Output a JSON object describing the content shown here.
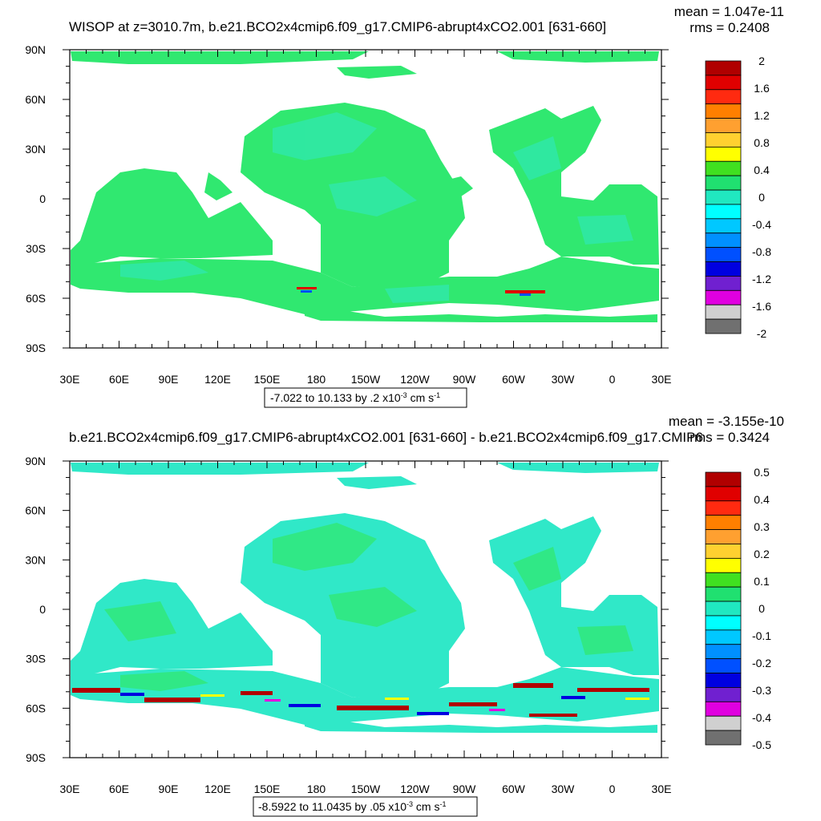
{
  "chart_data": [
    {
      "type": "heatmap",
      "title": "WISOP at z=3010.7m, b.e21.BCO2x4cmip6.f09_g17.CMIP6-abrupt4xCO2.001 [631-660]",
      "stats": {
        "mean": "mean = 1.047e-11",
        "rms": "rms = 0.2408"
      },
      "x_ticks": [
        "30E",
        "60E",
        "90E",
        "120E",
        "150E",
        "180",
        "150W",
        "120W",
        "90W",
        "60W",
        "30W",
        "0",
        "30E"
      ],
      "y_ticks": [
        "90N",
        "60N",
        "30N",
        "0",
        "30S",
        "60S",
        "90S"
      ],
      "xlim": [
        30,
        390
      ],
      "ylim": [
        -90,
        90
      ],
      "colorbar": {
        "levels": [
          "2",
          "1.6",
          "1.2",
          "0.8",
          "0.4",
          "0",
          "-0.4",
          "-0.8",
          "-1.2",
          "-1.6",
          "-2"
        ],
        "colors": [
          "#b00000",
          "#e00000",
          "#ff2a10",
          "#ff7f00",
          "#ffa030",
          "#ffd030",
          "#ffff00",
          "#40e020",
          "#20e070",
          "#20e8c0",
          "#00ffff",
          "#00c8ff",
          "#0090ff",
          "#0050ff",
          "#0000e0",
          "#7020d0",
          "#e000e0",
          "#d0d0d0",
          "#707070"
        ]
      },
      "range_label": {
        "text": "-7.022 to 10.133 by .2 x10",
        "exponent": "-3",
        "unit": " cm s",
        "unit_exponent": "-1"
      }
    },
    {
      "type": "heatmap",
      "title": "b.e21.BCO2x4cmip6.f09_g17.CMIP6-abrupt4xCO2.001 [631-660] - b.e21.BCO2x4cmip6.f09_g17.CMIP6",
      "stats": {
        "mean": "mean = -3.155e-10",
        "rms": "rms = 0.3424"
      },
      "x_ticks": [
        "30E",
        "60E",
        "90E",
        "120E",
        "150E",
        "180",
        "150W",
        "120W",
        "90W",
        "60W",
        "30W",
        "0",
        "30E"
      ],
      "y_ticks": [
        "90N",
        "60N",
        "30N",
        "0",
        "30S",
        "60S",
        "90S"
      ],
      "xlim": [
        30,
        390
      ],
      "ylim": [
        -90,
        90
      ],
      "colorbar": {
        "levels": [
          "0.5",
          "0.4",
          "0.3",
          "0.2",
          "0.1",
          "0",
          "-0.1",
          "-0.2",
          "-0.3",
          "-0.4",
          "-0.5"
        ],
        "colors": [
          "#b00000",
          "#e00000",
          "#ff2a10",
          "#ff7f00",
          "#ffa030",
          "#ffd030",
          "#ffff00",
          "#40e020",
          "#20e070",
          "#20e8c0",
          "#00ffff",
          "#00c8ff",
          "#0090ff",
          "#0050ff",
          "#0000e0",
          "#7020d0",
          "#e000e0",
          "#d0d0d0",
          "#707070"
        ]
      },
      "range_label": {
        "text": "-8.5922 to 11.0435 by .05 x10",
        "exponent": "-3",
        "unit": " cm s",
        "unit_exponent": "-1"
      }
    }
  ]
}
